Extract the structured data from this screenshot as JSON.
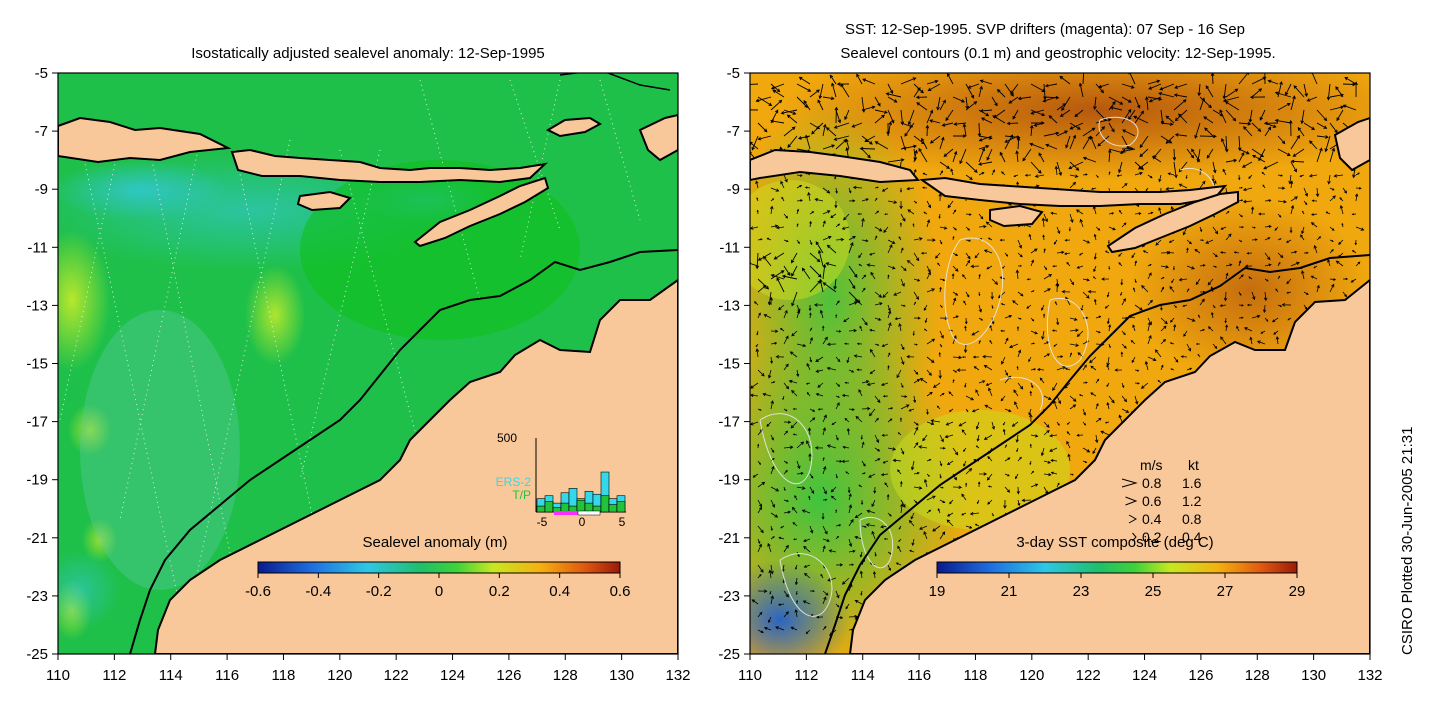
{
  "left_panel": {
    "title": "Isostatically adjusted sealevel anomaly: 12-Sep-1995",
    "colorbar": {
      "label": "Sealevel anomaly (m)",
      "ticks": [
        "-0.6",
        "-0.4",
        "-0.2",
        "0",
        "0.2",
        "0.4",
        "0.6"
      ]
    },
    "inset": {
      "ymax_label": "500",
      "series_ers2": "ERS-2",
      "series_tp": "T/P",
      "x_ticks": [
        "-5",
        "0",
        "5"
      ],
      "ers2_counts": [
        90,
        110,
        60,
        130,
        160,
        90,
        140,
        120,
        270,
        90,
        110
      ],
      "tp_counts": [
        40,
        70,
        30,
        60,
        40,
        80,
        60,
        40,
        110,
        50,
        70
      ]
    }
  },
  "right_panel": {
    "title_line1": "SST: 12-Sep-1995. SVP drifters (magenta): 07 Sep - 16 Sep",
    "title_line2": "Sealevel contours (0.1 m) and geostrophic velocity: 12-Sep-1995.",
    "colorbar": {
      "label": "3-day SST composite (deg C)",
      "ticks": [
        "19",
        "21",
        "23",
        "25",
        "27",
        "29"
      ]
    },
    "velocity_legend": {
      "header_ms": "m/s",
      "header_kt": "kt",
      "rows": [
        {
          "ms": "0.8",
          "kt": "1.6"
        },
        {
          "ms": "0.6",
          "kt": "1.2"
        },
        {
          "ms": "0.4",
          "kt": "0.8"
        },
        {
          "ms": "0.2",
          "kt": "0.4"
        }
      ]
    }
  },
  "axes": {
    "lon_ticks": [
      "110",
      "112",
      "114",
      "116",
      "118",
      "120",
      "122",
      "124",
      "126",
      "128",
      "130",
      "132"
    ],
    "lat_ticks": [
      "-5",
      "-7",
      "-9",
      "-11",
      "-13",
      "-15",
      "-17",
      "-19",
      "-21",
      "-23",
      "-25"
    ]
  },
  "credit": "CSIRO Plotted 30-Jun-2005 21:31",
  "colors": {
    "land": "#f9c89a",
    "ocean_green": "#22c33a",
    "anomaly_light": "#6fdc4a",
    "anomaly_blue": "#35c8e8",
    "sst_orange": "#f2a70e",
    "sst_dark": "#b3540e",
    "sst_green": "#3fc43f",
    "sst_blue": "#1b5cd6"
  }
}
